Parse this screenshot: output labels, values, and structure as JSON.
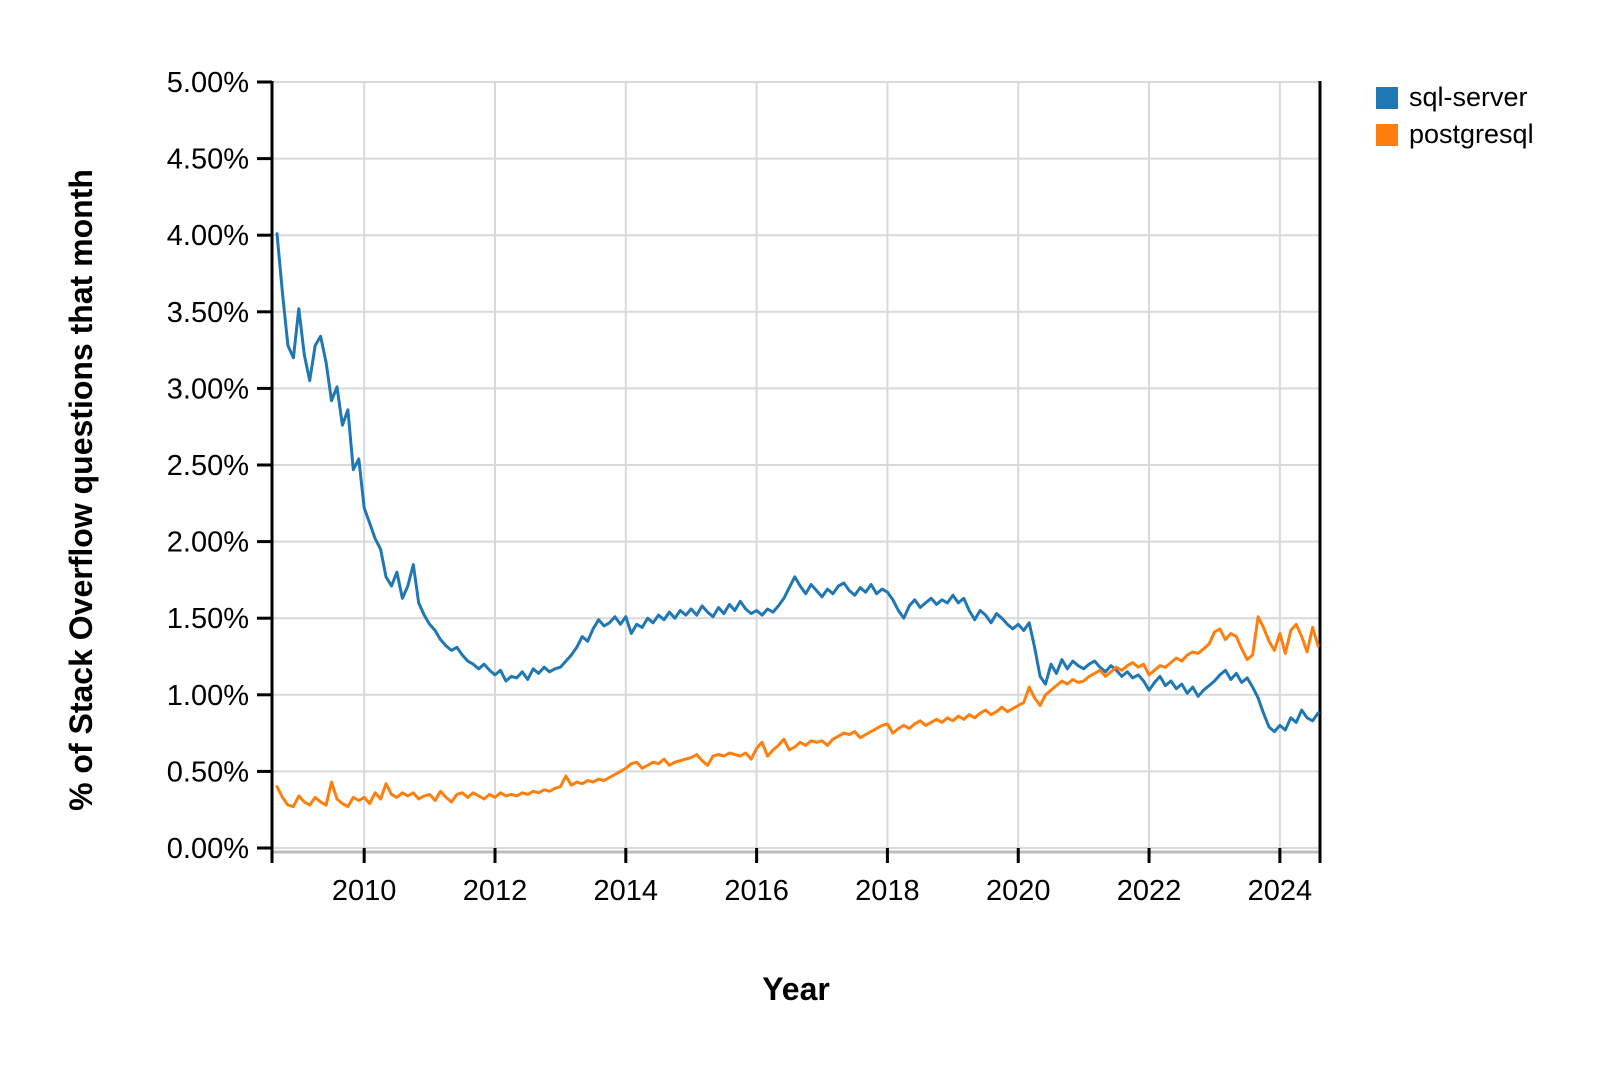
{
  "chart_data": {
    "type": "line",
    "title": "",
    "xlabel": "Year",
    "ylabel": "% of Stack Overflow questions that month",
    "legend_position": "top-right-outside",
    "grid": true,
    "background_color": "#ffffff",
    "grid_color": "#d9d9d9",
    "axis_color": "#000000",
    "ylim": [
      0,
      5
    ],
    "xlim": [
      2008.667,
      2024.583
    ],
    "x_start": 2008.667,
    "x_step_years": 0.0833333,
    "x_unit": "one value per month, Sep 2008 through Aug 2024",
    "y_ticks": [
      {
        "value": 0.0,
        "label": "0.00%"
      },
      {
        "value": 0.5,
        "label": "0.50%"
      },
      {
        "value": 1.0,
        "label": "1.00%"
      },
      {
        "value": 1.5,
        "label": "1.50%"
      },
      {
        "value": 2.0,
        "label": "2.00%"
      },
      {
        "value": 2.5,
        "label": "2.50%"
      },
      {
        "value": 3.0,
        "label": "3.00%"
      },
      {
        "value": 3.5,
        "label": "3.50%"
      },
      {
        "value": 4.0,
        "label": "4.00%"
      },
      {
        "value": 4.5,
        "label": "4.50%"
      },
      {
        "value": 5.0,
        "label": "5.00%"
      }
    ],
    "x_ticks": [
      {
        "value": 2010,
        "label": "2010"
      },
      {
        "value": 2012,
        "label": "2012"
      },
      {
        "value": 2014,
        "label": "2014"
      },
      {
        "value": 2016,
        "label": "2016"
      },
      {
        "value": 2018,
        "label": "2018"
      },
      {
        "value": 2020,
        "label": "2020"
      },
      {
        "value": 2022,
        "label": "2022"
      },
      {
        "value": 2024,
        "label": "2024"
      }
    ],
    "series": [
      {
        "name": "sql-server",
        "color": "#1f77b4",
        "values": [
          4.01,
          3.62,
          3.28,
          3.2,
          3.52,
          3.22,
          3.05,
          3.28,
          3.34,
          3.17,
          2.92,
          3.01,
          2.76,
          2.86,
          2.47,
          2.54,
          2.22,
          2.12,
          2.02,
          1.95,
          1.77,
          1.71,
          1.8,
          1.63,
          1.71,
          1.85,
          1.6,
          1.52,
          1.46,
          1.42,
          1.36,
          1.32,
          1.29,
          1.31,
          1.26,
          1.22,
          1.2,
          1.17,
          1.2,
          1.16,
          1.13,
          1.16,
          1.09,
          1.12,
          1.11,
          1.15,
          1.1,
          1.17,
          1.14,
          1.18,
          1.15,
          1.17,
          1.18,
          1.22,
          1.26,
          1.31,
          1.38,
          1.35,
          1.43,
          1.49,
          1.45,
          1.47,
          1.51,
          1.46,
          1.51,
          1.4,
          1.46,
          1.44,
          1.5,
          1.47,
          1.52,
          1.49,
          1.54,
          1.5,
          1.55,
          1.52,
          1.56,
          1.52,
          1.58,
          1.54,
          1.51,
          1.57,
          1.53,
          1.59,
          1.55,
          1.61,
          1.56,
          1.53,
          1.55,
          1.52,
          1.56,
          1.54,
          1.58,
          1.63,
          1.7,
          1.77,
          1.71,
          1.66,
          1.72,
          1.68,
          1.64,
          1.69,
          1.66,
          1.71,
          1.73,
          1.68,
          1.65,
          1.7,
          1.67,
          1.72,
          1.66,
          1.69,
          1.67,
          1.62,
          1.55,
          1.5,
          1.58,
          1.62,
          1.57,
          1.6,
          1.63,
          1.59,
          1.62,
          1.6,
          1.65,
          1.6,
          1.63,
          1.55,
          1.49,
          1.55,
          1.52,
          1.47,
          1.53,
          1.5,
          1.46,
          1.43,
          1.46,
          1.42,
          1.47,
          1.31,
          1.12,
          1.07,
          1.2,
          1.14,
          1.23,
          1.17,
          1.22,
          1.19,
          1.17,
          1.2,
          1.22,
          1.18,
          1.15,
          1.19,
          1.16,
          1.12,
          1.15,
          1.11,
          1.13,
          1.09,
          1.03,
          1.08,
          1.12,
          1.06,
          1.09,
          1.04,
          1.07,
          1.01,
          1.05,
          0.99,
          1.03,
          1.06,
          1.09,
          1.13,
          1.16,
          1.1,
          1.14,
          1.08,
          1.11,
          1.05,
          0.98,
          0.88,
          0.79,
          0.76,
          0.8,
          0.77,
          0.85,
          0.82,
          0.9,
          0.85,
          0.83,
          0.88
        ]
      },
      {
        "name": "postgresql",
        "color": "#ff7f0e",
        "values": [
          0.4,
          0.33,
          0.28,
          0.27,
          0.34,
          0.3,
          0.28,
          0.33,
          0.3,
          0.28,
          0.43,
          0.32,
          0.29,
          0.27,
          0.33,
          0.31,
          0.33,
          0.29,
          0.36,
          0.32,
          0.42,
          0.35,
          0.33,
          0.36,
          0.34,
          0.36,
          0.32,
          0.34,
          0.35,
          0.31,
          0.37,
          0.33,
          0.3,
          0.35,
          0.36,
          0.33,
          0.36,
          0.34,
          0.32,
          0.35,
          0.33,
          0.36,
          0.34,
          0.35,
          0.34,
          0.36,
          0.35,
          0.37,
          0.36,
          0.38,
          0.37,
          0.39,
          0.4,
          0.47,
          0.41,
          0.43,
          0.42,
          0.44,
          0.43,
          0.45,
          0.44,
          0.46,
          0.48,
          0.5,
          0.52,
          0.55,
          0.56,
          0.52,
          0.54,
          0.56,
          0.55,
          0.58,
          0.54,
          0.56,
          0.57,
          0.58,
          0.59,
          0.61,
          0.57,
          0.54,
          0.6,
          0.61,
          0.6,
          0.62,
          0.61,
          0.6,
          0.62,
          0.58,
          0.65,
          0.69,
          0.6,
          0.64,
          0.67,
          0.71,
          0.64,
          0.66,
          0.69,
          0.67,
          0.7,
          0.69,
          0.7,
          0.67,
          0.71,
          0.73,
          0.75,
          0.74,
          0.76,
          0.72,
          0.74,
          0.76,
          0.78,
          0.8,
          0.81,
          0.75,
          0.78,
          0.8,
          0.78,
          0.81,
          0.83,
          0.8,
          0.82,
          0.84,
          0.82,
          0.85,
          0.83,
          0.86,
          0.84,
          0.87,
          0.85,
          0.88,
          0.9,
          0.87,
          0.89,
          0.92,
          0.89,
          0.91,
          0.93,
          0.95,
          1.05,
          0.98,
          0.93,
          1.0,
          1.03,
          1.06,
          1.09,
          1.07,
          1.1,
          1.08,
          1.09,
          1.12,
          1.14,
          1.16,
          1.12,
          1.15,
          1.18,
          1.16,
          1.19,
          1.21,
          1.18,
          1.2,
          1.13,
          1.16,
          1.19,
          1.18,
          1.21,
          1.24,
          1.22,
          1.26,
          1.28,
          1.27,
          1.3,
          1.33,
          1.41,
          1.43,
          1.36,
          1.4,
          1.38,
          1.3,
          1.23,
          1.26,
          1.51,
          1.44,
          1.35,
          1.29,
          1.4,
          1.27,
          1.42,
          1.46,
          1.38,
          1.28,
          1.44,
          1.32
        ]
      }
    ]
  }
}
